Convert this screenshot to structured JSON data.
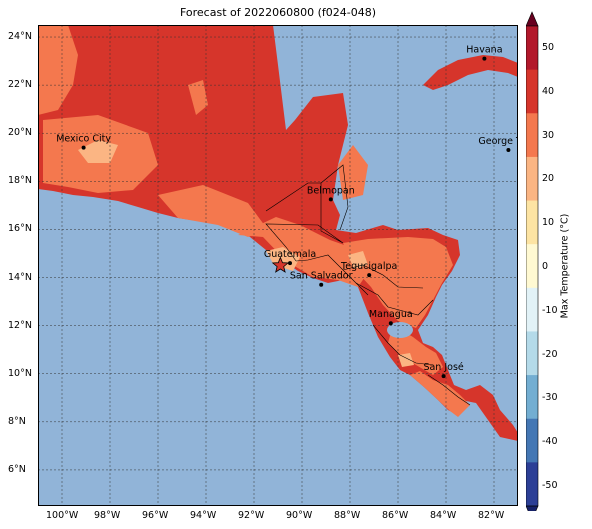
{
  "title": "Forecast of 2022060800 (f024-048)",
  "map": {
    "ocean_color": "#91b4d8",
    "grid": true,
    "lon_range": [
      -101,
      -81
    ],
    "lat_range": [
      4.5,
      24.5
    ],
    "lon_ticks": [
      {
        "value": -100,
        "label": "100°W"
      },
      {
        "value": -98,
        "label": "98°W"
      },
      {
        "value": -96,
        "label": "96°W"
      },
      {
        "value": -94,
        "label": "94°W"
      },
      {
        "value": -92,
        "label": "92°W"
      },
      {
        "value": -90,
        "label": "90°W"
      },
      {
        "value": -88,
        "label": "88°W"
      },
      {
        "value": -86,
        "label": "86°W"
      },
      {
        "value": -84,
        "label": "84°W"
      },
      {
        "value": -82,
        "label": "82°W"
      }
    ],
    "lat_ticks": [
      {
        "value": 24,
        "label": "24°N"
      },
      {
        "value": 22,
        "label": "22°N"
      },
      {
        "value": 20,
        "label": "20°N"
      },
      {
        "value": 18,
        "label": "18°N"
      },
      {
        "value": 16,
        "label": "16°N"
      },
      {
        "value": 14,
        "label": "14°N"
      },
      {
        "value": 12,
        "label": "12°N"
      },
      {
        "value": 10,
        "label": "10°N"
      },
      {
        "value": 8,
        "label": "8°N"
      },
      {
        "value": 6,
        "label": "6°N"
      }
    ],
    "cities": [
      {
        "name": "Havana",
        "lon": -82.4,
        "lat": 23.1
      },
      {
        "name": "Mexico City",
        "lon": -99.1,
        "lat": 19.4
      },
      {
        "name": "George Town",
        "lon": -81.4,
        "lat": 19.3
      },
      {
        "name": "Belmopan",
        "lon": -88.8,
        "lat": 17.25
      },
      {
        "name": "Guatemala",
        "lon": -90.5,
        "lat": 14.6
      },
      {
        "name": "San Salvador",
        "lon": -89.2,
        "lat": 13.7
      },
      {
        "name": "Tegucigalpa",
        "lon": -87.2,
        "lat": 14.1
      },
      {
        "name": "Managua",
        "lon": -86.3,
        "lat": 12.1
      },
      {
        "name": "San José",
        "lon": -84.1,
        "lat": 9.9
      }
    ],
    "marker": {
      "type": "star",
      "lon": -90.9,
      "lat": 14.5
    }
  },
  "colorbar": {
    "label": "Max Temperature (°C)",
    "ticks": [
      50,
      40,
      30,
      20,
      10,
      0,
      -10,
      -20,
      -30,
      -40,
      -50
    ],
    "colors": [
      "#67001f",
      "#b2182b",
      "#d6352b",
      "#f4784e",
      "#fbb583",
      "#fde4a3",
      "#fff9d2",
      "#e2f2f7",
      "#b4dae9",
      "#73aed2",
      "#4477b4",
      "#2c3f96",
      "#162168"
    ]
  }
}
